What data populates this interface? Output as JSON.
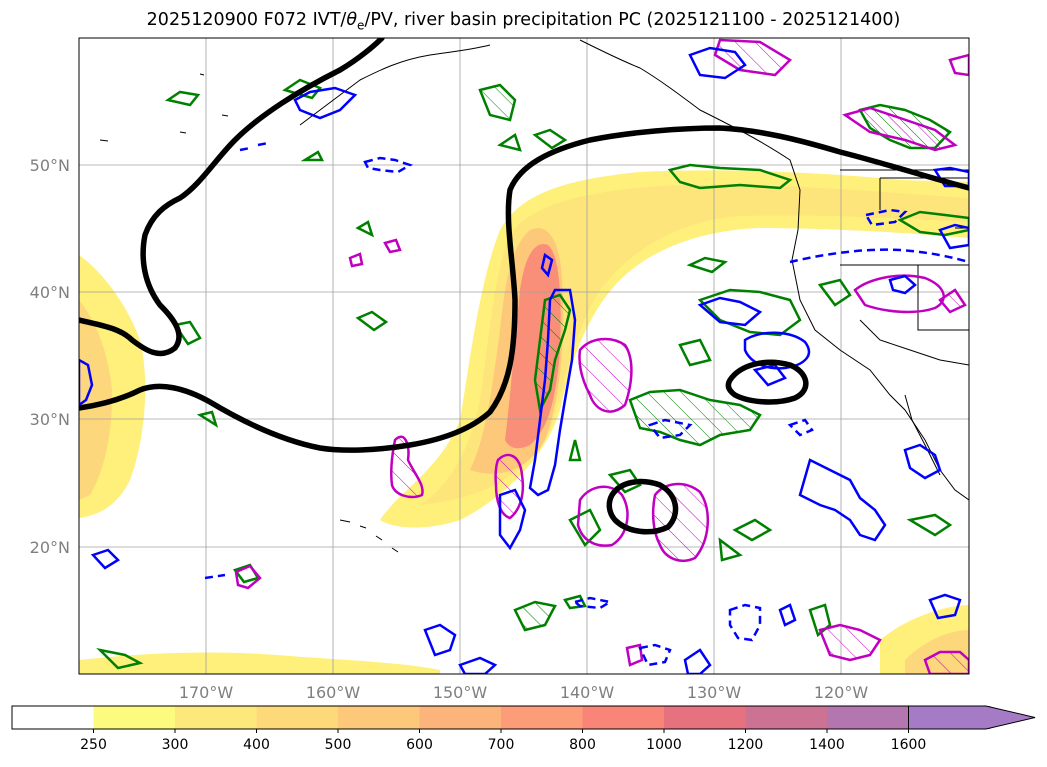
{
  "title": {
    "prefix": "2025120900 F072 IVT/",
    "theta": "θ",
    "theta_sub": "e",
    "suffix": "/PV, river basin precipitation PC (2025121100 - 2025121400)"
  },
  "map_view": {
    "lon_range": [
      -180,
      -110
    ],
    "lat_range": [
      10,
      60
    ],
    "gridlines": true
  },
  "lat_labels": [
    "50°N",
    "40°N",
    "30°N",
    "20°N"
  ],
  "lon_labels": [
    "170°W",
    "160°W",
    "150°W",
    "140°W",
    "130°W",
    "120°W"
  ],
  "colorbar": {
    "ticks": [
      "250",
      "300",
      "400",
      "500",
      "600",
      "700",
      "800",
      "1000",
      "1200",
      "1400",
      "1600"
    ],
    "colors": [
      "#ffffff",
      "#fdfb7e",
      "#fde97b",
      "#fdd97a",
      "#fdc87a",
      "#fdb47a",
      "#fd9c78",
      "#f98578",
      "#e7727f",
      "#cc7394",
      "#b376ae",
      "#a57bc6"
    ],
    "extend": "max"
  },
  "colors": {
    "ivt_light": "#fef07a",
    "ivt_mid": "#fdd77c",
    "ivt_orange": "#fbb07a",
    "ivt_red": "#f58677",
    "theta_e_line": "#000000",
    "pv_positive": "#0000ff",
    "green_contour": "#008000",
    "magenta_contour": "#c000c0"
  }
}
